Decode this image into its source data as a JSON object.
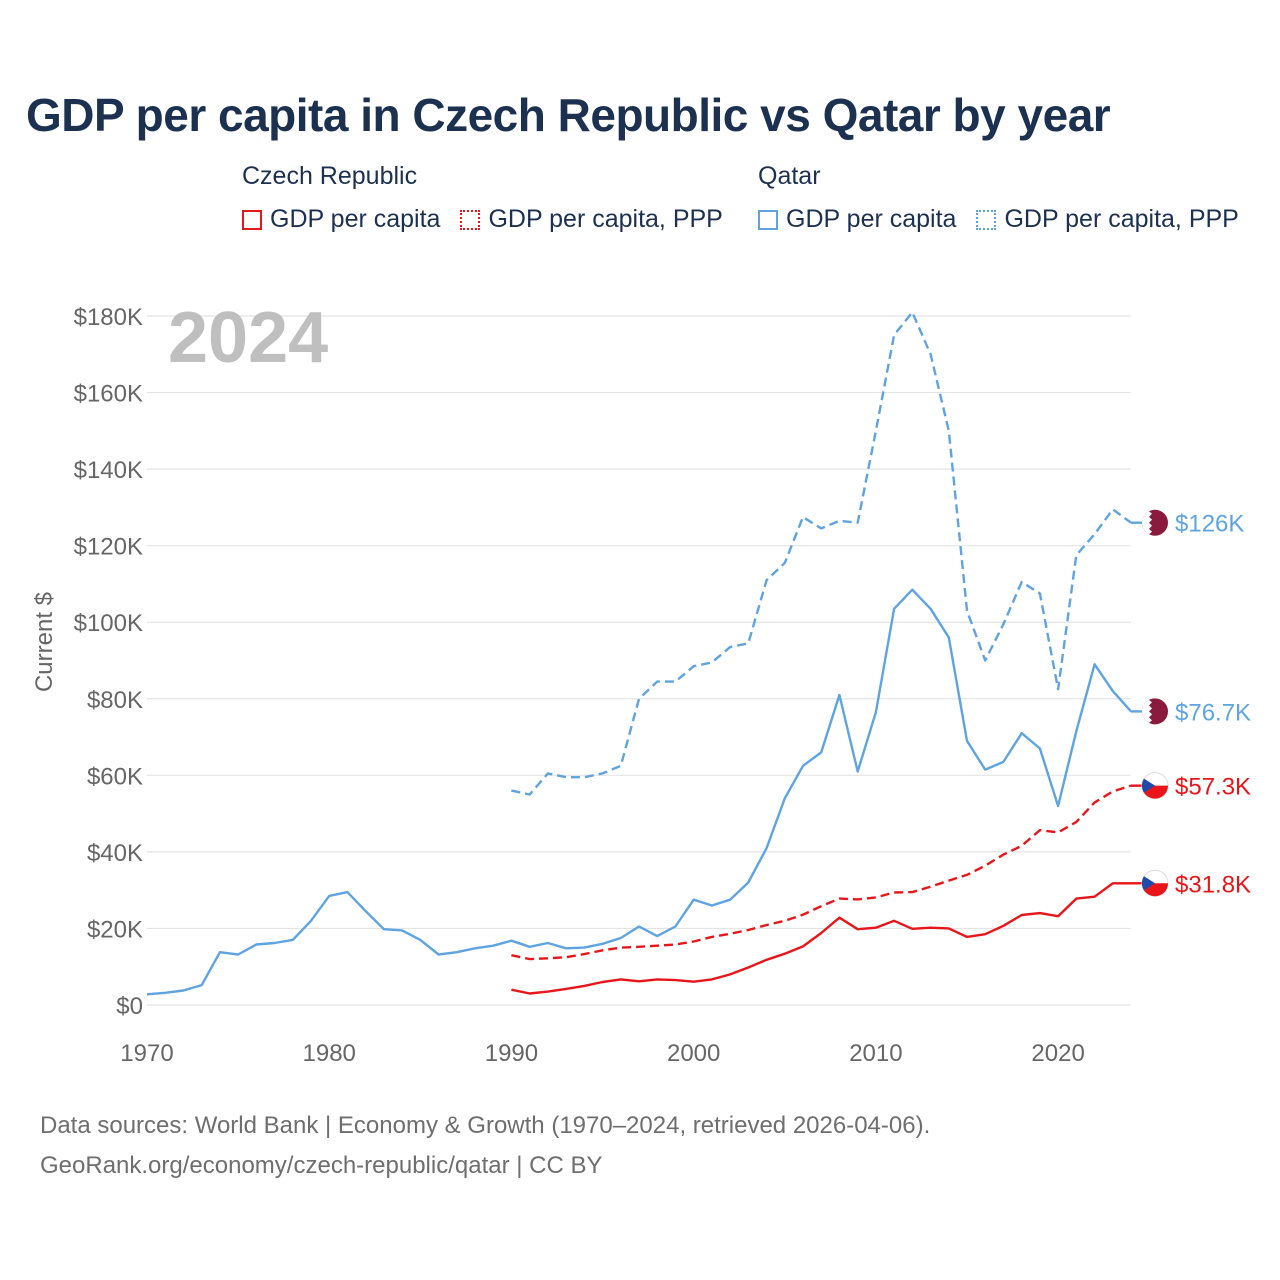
{
  "title": "GDP per capita in Czech Republic vs Qatar by year",
  "legend": {
    "groups": [
      {
        "name": "Czech Republic",
        "color": "#e8161a",
        "items": [
          "GDP per capita",
          "GDP per capita, PPP"
        ]
      },
      {
        "name": "Qatar",
        "color": "#5fa4e0",
        "items": [
          "GDP per capita",
          "GDP per capita, PPP"
        ]
      }
    ]
  },
  "year_label": "2024",
  "footer": {
    "line1": "Data sources: World Bank | Economy & Growth (1970–2024, retrieved 2026-04-06).",
    "line2": "GeoRank.org/economy/czech-republic/qatar | CC BY"
  },
  "chart_data": {
    "type": "line",
    "title": "GDP per capita in Czech Republic vs Qatar by year",
    "xlabel": "",
    "ylabel": "Current $",
    "xlim": [
      1970,
      2024
    ],
    "ylim": [
      0,
      180000
    ],
    "x_ticks": [
      1970,
      1980,
      1990,
      2000,
      2010,
      2020
    ],
    "x_tick_labels": [
      "1970",
      "1980",
      "1990",
      "2000",
      "2010",
      "2020"
    ],
    "y_ticks": [
      0,
      20000,
      40000,
      60000,
      80000,
      100000,
      120000,
      140000,
      160000,
      180000
    ],
    "y_tick_labels": [
      "$0",
      "$20K",
      "$40K",
      "$60K",
      "$80K",
      "$100K",
      "$120K",
      "$140K",
      "$160K",
      "$180K"
    ],
    "grid": true,
    "series": [
      {
        "name": "Qatar GDP per capita",
        "country": "Qatar",
        "color": "#5fa4e0",
        "dashed": false,
        "end_label": "$76.7K",
        "x": [
          1970,
          1971,
          1972,
          1973,
          1974,
          1975,
          1976,
          1977,
          1978,
          1979,
          1980,
          1981,
          1982,
          1983,
          1984,
          1985,
          1986,
          1987,
          1988,
          1989,
          1990,
          1991,
          1992,
          1993,
          1994,
          1995,
          1996,
          1997,
          1998,
          1999,
          2000,
          2001,
          2002,
          2003,
          2004,
          2005,
          2006,
          2007,
          2008,
          2009,
          2010,
          2011,
          2012,
          2013,
          2014,
          2015,
          2016,
          2017,
          2018,
          2019,
          2020,
          2021,
          2022,
          2023,
          2024
        ],
        "values": [
          2800,
          3200,
          3800,
          5200,
          13800,
          13200,
          15800,
          16200,
          17000,
          22000,
          28500,
          29500,
          24500,
          19800,
          19500,
          17000,
          13200,
          13800,
          14800,
          15500,
          16800,
          15200,
          16200,
          14800,
          15000,
          16000,
          17500,
          20500,
          18000,
          20500,
          27500,
          26000,
          27500,
          32000,
          41000,
          54000,
          62500,
          66000,
          81000,
          61000,
          76500,
          103500,
          108500,
          103500,
          96000,
          69000,
          61500,
          63500,
          71000,
          67000,
          52000,
          71500,
          89000,
          82000,
          76700
        ]
      },
      {
        "name": "Qatar GDP per capita, PPP",
        "country": "Qatar",
        "color": "#5fa4e0",
        "dashed": true,
        "end_label": "$126K",
        "x": [
          1990,
          1991,
          1992,
          1993,
          1994,
          1995,
          1996,
          1997,
          1998,
          1999,
          2000,
          2001,
          2002,
          2003,
          2004,
          2005,
          2006,
          2007,
          2008,
          2009,
          2010,
          2011,
          2012,
          2013,
          2014,
          2015,
          2016,
          2017,
          2018,
          2019,
          2020,
          2021,
          2022,
          2023,
          2024
        ],
        "values": [
          56000,
          55000,
          60500,
          59500,
          59500,
          60500,
          62500,
          80000,
          84500,
          84500,
          88500,
          89500,
          93500,
          94500,
          111000,
          115500,
          127500,
          124500,
          126500,
          126000,
          150000,
          175000,
          181000,
          170000,
          150000,
          103000,
          90000,
          99500,
          110500,
          107500,
          82500,
          117500,
          123000,
          129500,
          126000
        ]
      },
      {
        "name": "Czech Republic GDP per capita",
        "country": "Czech Republic",
        "color": "#e8161a",
        "dashed": false,
        "end_label": "$31.8K",
        "x": [
          1990,
          1991,
          1992,
          1993,
          1994,
          1995,
          1996,
          1997,
          1998,
          1999,
          2000,
          2001,
          2002,
          2003,
          2004,
          2005,
          2006,
          2007,
          2008,
          2009,
          2010,
          2011,
          2012,
          2013,
          2014,
          2015,
          2016,
          2017,
          2018,
          2019,
          2020,
          2021,
          2022,
          2023,
          2024
        ],
        "values": [
          4000,
          3000,
          3500,
          4200,
          5000,
          6000,
          6700,
          6200,
          6700,
          6500,
          6100,
          6700,
          8000,
          9800,
          11800,
          13400,
          15300,
          18800,
          22800,
          19800,
          20200,
          22000,
          19900,
          20200,
          20000,
          17800,
          18500,
          20700,
          23500,
          24000,
          23200,
          27800,
          28300,
          31800,
          31800
        ]
      },
      {
        "name": "Czech Republic GDP per capita, PPP",
        "country": "Czech Republic",
        "color": "#e8161a",
        "dashed": true,
        "end_label": "$57.3K",
        "x": [
          1990,
          1991,
          1992,
          1993,
          1994,
          1995,
          1996,
          1997,
          1998,
          1999,
          2000,
          2001,
          2002,
          2003,
          2004,
          2005,
          2006,
          2007,
          2008,
          2009,
          2010,
          2011,
          2012,
          2013,
          2014,
          2015,
          2016,
          2017,
          2018,
          2019,
          2020,
          2021,
          2022,
          2023,
          2024
        ],
        "values": [
          13000,
          12000,
          12200,
          12500,
          13300,
          14300,
          15000,
          15200,
          15500,
          15800,
          16600,
          17800,
          18600,
          19600,
          20900,
          22000,
          23600,
          25800,
          27800,
          27600,
          28100,
          29400,
          29500,
          30900,
          32500,
          34000,
          36400,
          39300,
          41600,
          45700,
          45100,
          47800,
          52900,
          55800,
          57300
        ]
      }
    ]
  }
}
